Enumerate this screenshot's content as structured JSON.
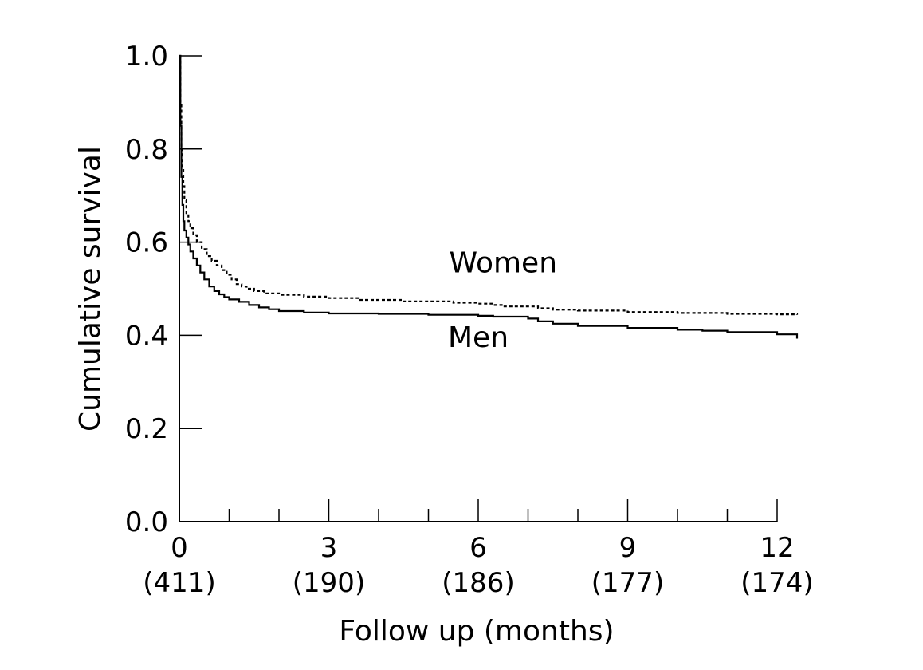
{
  "chart_data": {
    "type": "line",
    "title": "",
    "xlabel": "Follow up (months)",
    "ylabel": "Cumulative survival",
    "xlim": [
      0,
      12.4
    ],
    "ylim": [
      0.0,
      1.0
    ],
    "x_ticks": [
      0,
      3,
      6,
      9,
      12
    ],
    "x_tick_labels": [
      "0",
      "3",
      "6",
      "9",
      "12"
    ],
    "x_at_risk_labels": [
      "(411)",
      "(190)",
      "(186)",
      "(177)",
      "(174)"
    ],
    "x_minor_ticks": [
      1,
      2,
      4,
      5,
      7,
      8,
      10,
      11
    ],
    "y_ticks": [
      0.0,
      0.2,
      0.4,
      0.6,
      0.8,
      1.0
    ],
    "y_tick_labels": [
      "0.0",
      "0.2",
      "0.4",
      "0.6",
      "0.8",
      "1.0"
    ],
    "grid": false,
    "legend": "none",
    "series": [
      {
        "name": "Women",
        "line_style": "dashed",
        "label_at": [
          6.5,
          0.535
        ],
        "points": [
          [
            0,
            1.0
          ],
          [
            0.02,
            0.9
          ],
          [
            0.04,
            0.8
          ],
          [
            0.06,
            0.76
          ],
          [
            0.08,
            0.72
          ],
          [
            0.1,
            0.69
          ],
          [
            0.14,
            0.66
          ],
          [
            0.18,
            0.645
          ],
          [
            0.22,
            0.63
          ],
          [
            0.28,
            0.615
          ],
          [
            0.35,
            0.6
          ],
          [
            0.45,
            0.585
          ],
          [
            0.55,
            0.57
          ],
          [
            0.65,
            0.56
          ],
          [
            0.75,
            0.55
          ],
          [
            0.85,
            0.54
          ],
          [
            0.95,
            0.53
          ],
          [
            1.05,
            0.52
          ],
          [
            1.15,
            0.51
          ],
          [
            1.25,
            0.505
          ],
          [
            1.35,
            0.5
          ],
          [
            1.5,
            0.495
          ],
          [
            1.7,
            0.49
          ],
          [
            2.0,
            0.487
          ],
          [
            2.5,
            0.483
          ],
          [
            3.0,
            0.48
          ],
          [
            3.6,
            0.476
          ],
          [
            4.5,
            0.473
          ],
          [
            5.5,
            0.47
          ],
          [
            6.0,
            0.468
          ],
          [
            6.3,
            0.465
          ],
          [
            6.5,
            0.462
          ],
          [
            7.2,
            0.458
          ],
          [
            7.5,
            0.455
          ],
          [
            8.0,
            0.453
          ],
          [
            9.0,
            0.45
          ],
          [
            10.0,
            0.448
          ],
          [
            11.0,
            0.446
          ],
          [
            12.0,
            0.445
          ],
          [
            12.4,
            0.444
          ]
        ]
      },
      {
        "name": "Men",
        "line_style": "solid",
        "label_at": [
          6.0,
          0.375
        ],
        "points": [
          [
            0,
            1.0
          ],
          [
            0.02,
            0.85
          ],
          [
            0.04,
            0.74
          ],
          [
            0.06,
            0.68
          ],
          [
            0.08,
            0.645
          ],
          [
            0.1,
            0.625
          ],
          [
            0.14,
            0.61
          ],
          [
            0.18,
            0.595
          ],
          [
            0.22,
            0.58
          ],
          [
            0.28,
            0.565
          ],
          [
            0.35,
            0.55
          ],
          [
            0.42,
            0.535
          ],
          [
            0.5,
            0.52
          ],
          [
            0.6,
            0.505
          ],
          [
            0.7,
            0.495
          ],
          [
            0.8,
            0.488
          ],
          [
            0.9,
            0.482
          ],
          [
            1.0,
            0.477
          ],
          [
            1.2,
            0.472
          ],
          [
            1.4,
            0.465
          ],
          [
            1.6,
            0.46
          ],
          [
            1.8,
            0.456
          ],
          [
            2.0,
            0.452
          ],
          [
            2.5,
            0.449
          ],
          [
            3.0,
            0.447
          ],
          [
            4.0,
            0.446
          ],
          [
            5.0,
            0.444
          ],
          [
            6.0,
            0.442
          ],
          [
            6.3,
            0.44
          ],
          [
            7.0,
            0.436
          ],
          [
            7.2,
            0.43
          ],
          [
            7.5,
            0.425
          ],
          [
            8.0,
            0.42
          ],
          [
            9.0,
            0.416
          ],
          [
            10.0,
            0.412
          ],
          [
            10.5,
            0.41
          ],
          [
            11.0,
            0.407
          ],
          [
            12.0,
            0.402
          ],
          [
            12.4,
            0.393
          ]
        ]
      }
    ]
  }
}
